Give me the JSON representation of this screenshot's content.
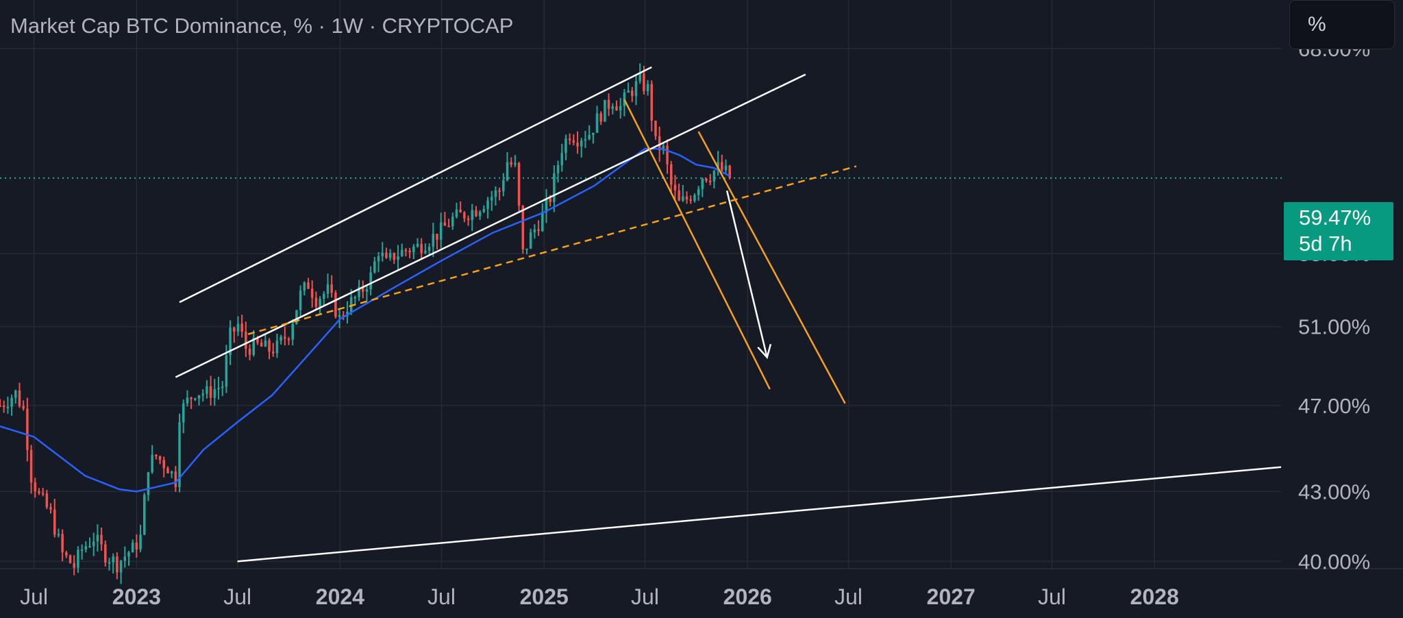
{
  "header": {
    "title": "Market Cap BTC Dominance, % · 1W · CRYPTOCAP",
    "unit_button": "%"
  },
  "price_badge": {
    "value": "59.47%",
    "countdown": "5d 7h"
  },
  "colors": {
    "background": "#161a25",
    "grid": "#262a35",
    "up": "#26a69a",
    "down": "#ef5350",
    "ma": "#2962ff",
    "trend_white": "#ffffff",
    "trend_orange": "#f7a21b",
    "price_line": "#26a69a",
    "badge": "#089981"
  },
  "chart_data": {
    "type": "candlestick",
    "symbol": "Market Cap BTC Dominance, %",
    "interval": "1W",
    "source": "CRYPTOCAP",
    "y_axis": {
      "labels": [
        "68.00%",
        "55.00%",
        "51.00%",
        "47.00%",
        "43.00%",
        "40.00%"
      ],
      "values": [
        68,
        55,
        51,
        47,
        43,
        40
      ],
      "scale": "log",
      "range": [
        39.7,
        71.5
      ]
    },
    "x_axis": {
      "labels": [
        {
          "text": "Jul",
          "date": "2022-07-01",
          "bold": false
        },
        {
          "text": "2023",
          "date": "2023-01-01",
          "bold": true
        },
        {
          "text": "Jul",
          "date": "2023-07-01",
          "bold": false
        },
        {
          "text": "2024",
          "date": "2024-01-01",
          "bold": true
        },
        {
          "text": "Jul",
          "date": "2024-07-01",
          "bold": false
        },
        {
          "text": "2025",
          "date": "2025-01-01",
          "bold": true
        },
        {
          "text": "Jul",
          "date": "2025-07-01",
          "bold": false
        },
        {
          "text": "2026",
          "date": "2026-01-01",
          "bold": true
        },
        {
          "text": "Jul",
          "date": "2026-07-01",
          "bold": false
        },
        {
          "text": "2027",
          "date": "2027-01-01",
          "bold": true
        },
        {
          "text": "Jul",
          "date": "2027-07-01",
          "bold": false
        },
        {
          "text": "2028",
          "date": "2028-01-01",
          "bold": true
        }
      ],
      "range": [
        "2022-05-01",
        "2028-08-15"
      ]
    },
    "current_price": 59.47,
    "price_points": [
      [
        "2022-05-01",
        47.0
      ],
      [
        "2022-05-29",
        47.6
      ],
      [
        "2022-06-12",
        46.8
      ],
      [
        "2022-06-26",
        43.7
      ],
      [
        "2022-07-10",
        42.8
      ],
      [
        "2022-07-31",
        42.0
      ],
      [
        "2022-08-21",
        40.3
      ],
      [
        "2022-09-11",
        39.8
      ],
      [
        "2022-09-25",
        40.5
      ],
      [
        "2022-10-16",
        41.0
      ],
      [
        "2022-11-06",
        40.3
      ],
      [
        "2022-11-27",
        39.9
      ],
      [
        "2022-12-18",
        40.4
      ],
      [
        "2022-12-25",
        40.5
      ],
      [
        "2023-01-08",
        41.0
      ],
      [
        "2023-01-22",
        44.2
      ],
      [
        "2023-02-05",
        44.6
      ],
      [
        "2023-02-26",
        44.1
      ],
      [
        "2023-03-12",
        43.5
      ],
      [
        "2023-03-19",
        46.6
      ],
      [
        "2023-04-02",
        47.2
      ],
      [
        "2023-04-16",
        47.7
      ],
      [
        "2023-05-07",
        47.6
      ],
      [
        "2023-06-04",
        48.0
      ],
      [
        "2023-06-18",
        50.5
      ],
      [
        "2023-07-02",
        51.1
      ],
      [
        "2023-07-16",
        49.9
      ],
      [
        "2023-08-06",
        50.0
      ],
      [
        "2023-08-27",
        49.8
      ],
      [
        "2023-09-10",
        49.9
      ],
      [
        "2023-10-01",
        50.7
      ],
      [
        "2023-10-22",
        52.7
      ],
      [
        "2023-11-05",
        53.3
      ],
      [
        "2023-11-19",
        52.5
      ],
      [
        "2023-12-10",
        52.9
      ],
      [
        "2023-12-31",
        51.4
      ],
      [
        "2024-01-14",
        52.1
      ],
      [
        "2024-02-04",
        52.7
      ],
      [
        "2024-02-25",
        53.7
      ],
      [
        "2024-03-10",
        55.2
      ],
      [
        "2024-03-24",
        54.4
      ],
      [
        "2024-04-07",
        54.9
      ],
      [
        "2024-04-28",
        55.2
      ],
      [
        "2024-05-19",
        55.4
      ],
      [
        "2024-06-09",
        55.8
      ],
      [
        "2024-06-30",
        56.3
      ],
      [
        "2024-07-21",
        57.0
      ],
      [
        "2024-08-11",
        57.3
      ],
      [
        "2024-09-01",
        57.6
      ],
      [
        "2024-09-22",
        58.2
      ],
      [
        "2024-10-13",
        58.7
      ],
      [
        "2024-10-27",
        60.5
      ],
      [
        "2024-11-10",
        60.1
      ],
      [
        "2024-11-24",
        55.0
      ],
      [
        "2024-12-08",
        56.0
      ],
      [
        "2024-12-29",
        57.2
      ],
      [
        "2025-01-12",
        58.3
      ],
      [
        "2025-02-02",
        61.4
      ],
      [
        "2025-02-16",
        62.3
      ],
      [
        "2025-03-02",
        62.0
      ],
      [
        "2025-03-23",
        62.3
      ],
      [
        "2025-04-13",
        63.6
      ],
      [
        "2025-05-04",
        64.5
      ],
      [
        "2025-05-18",
        64.0
      ],
      [
        "2025-06-01",
        64.9
      ],
      [
        "2025-06-22",
        65.7
      ],
      [
        "2025-07-06",
        65.2
      ],
      [
        "2025-07-20",
        61.6
      ],
      [
        "2025-08-03",
        61.2
      ],
      [
        "2025-08-17",
        59.0
      ],
      [
        "2025-08-31",
        57.9
      ],
      [
        "2025-09-14",
        58.2
      ],
      [
        "2025-09-28",
        58.7
      ],
      [
        "2025-10-12",
        59.6
      ],
      [
        "2025-10-26",
        59.7
      ],
      [
        "2025-11-09",
        60.1
      ],
      [
        "2025-11-23",
        59.8
      ],
      [
        "2025-11-30",
        59.47
      ]
    ],
    "moving_average": [
      [
        "2022-05-01",
        46.0
      ],
      [
        "2022-07-01",
        45.5
      ],
      [
        "2022-10-01",
        43.7
      ],
      [
        "2022-12-01",
        43.1
      ],
      [
        "2023-01-01",
        43.0
      ],
      [
        "2023-03-12",
        43.4
      ],
      [
        "2023-05-01",
        44.9
      ],
      [
        "2023-07-01",
        46.2
      ],
      [
        "2023-09-01",
        47.5
      ],
      [
        "2023-11-01",
        49.4
      ],
      [
        "2024-01-01",
        51.4
      ],
      [
        "2024-04-01",
        53.0
      ],
      [
        "2024-07-01",
        54.6
      ],
      [
        "2024-10-01",
        56.2
      ],
      [
        "2025-01-01",
        57.4
      ],
      [
        "2025-04-01",
        59.0
      ],
      [
        "2025-07-01",
        61.3
      ],
      [
        "2025-08-01",
        61.3
      ],
      [
        "2025-09-01",
        60.9
      ],
      [
        "2025-10-01",
        60.3
      ],
      [
        "2025-11-01",
        60.1
      ],
      [
        "2025-11-30",
        59.6
      ]
    ],
    "drawings": [
      {
        "kind": "channel-top",
        "color": "white",
        "from": [
          "2023-03-19",
          52.3
        ],
        "to": [
          "2025-07-13",
          66.7
        ]
      },
      {
        "kind": "channel-bottom",
        "color": "white",
        "from": [
          "2023-03-12",
          48.4
        ],
        "to": [
          "2026-04-15",
          66.2
        ]
      },
      {
        "kind": "support",
        "color": "orange",
        "dashed": true,
        "from": [
          "2023-07-20",
          50.6
        ],
        "to": [
          "2026-07-15",
          60.2
        ]
      },
      {
        "kind": "down-channel-left",
        "color": "orange",
        "from": [
          "2025-05-25",
          64.5
        ],
        "to": [
          "2026-02-10",
          47.8
        ]
      },
      {
        "kind": "down-channel-right",
        "color": "orange",
        "from": [
          "2025-10-05",
          62.4
        ],
        "to": [
          "2026-06-25",
          47.1
        ]
      },
      {
        "kind": "projection-arrow",
        "color": "white",
        "from": [
          "2025-11-25",
          58.7
        ],
        "to": [
          "2026-02-05",
          49.4
        ]
      },
      {
        "kind": "long-term-support",
        "color": "white",
        "from": [
          "2023-07-01",
          40.0
        ],
        "to": [
          "2028-08-15",
          44.1
        ]
      }
    ]
  }
}
